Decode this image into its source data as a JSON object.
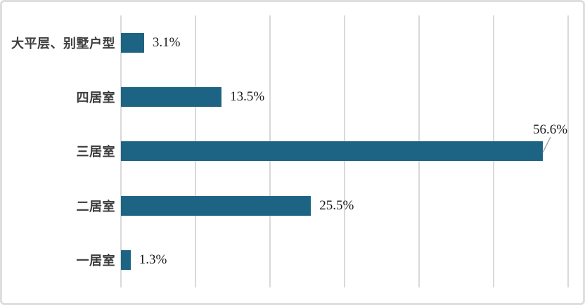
{
  "chart_data": {
    "type": "bar",
    "orientation": "horizontal",
    "title": "",
    "categories": [
      "大平层、别墅户型",
      "四居室",
      "三居室",
      "二居室",
      "一居室"
    ],
    "values": [
      3.1,
      13.5,
      56.6,
      25.5,
      1.3
    ],
    "value_labels": [
      "3.1%",
      "13.5%",
      "56.6%",
      "25.5%",
      "1.3%"
    ],
    "callout_index": 2,
    "xlim": [
      0,
      60
    ],
    "tick_step": 10,
    "grid": true,
    "axis_tick_labels_visible": false,
    "legend": "none",
    "colors": {
      "bar": "#1d6484",
      "gridline": "#d9d9d9",
      "category_label": "#3d3d3d",
      "value_label": "#1a1a1a",
      "leader_line": "#a6a6a6",
      "frame_border": "#dedede",
      "background": "#ffffff"
    }
  }
}
